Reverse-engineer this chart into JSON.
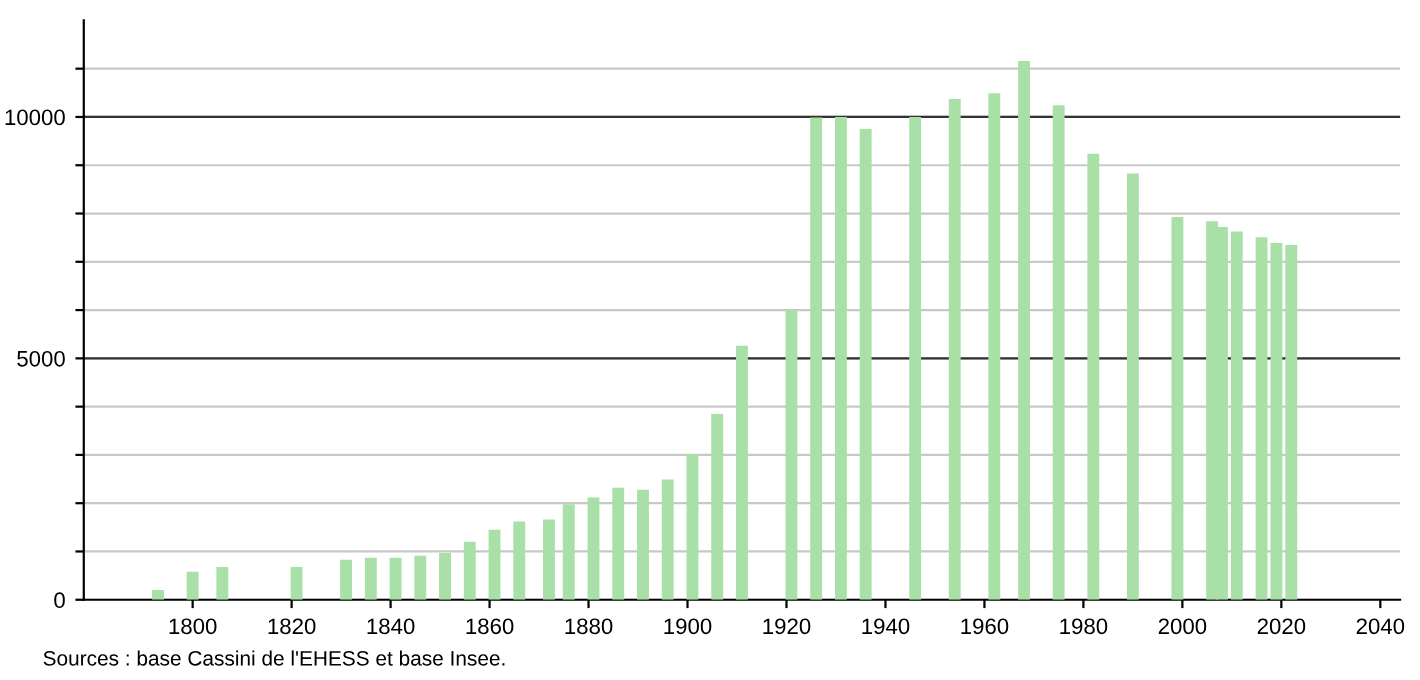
{
  "chart_data": {
    "type": "bar",
    "color": "#a8e0a8",
    "x": [
      1793,
      1800,
      1806,
      1821,
      1831,
      1836,
      1841,
      1846,
      1851,
      1856,
      1861,
      1866,
      1872,
      1876,
      1881,
      1886,
      1891,
      1896,
      1901,
      1906,
      1911,
      1921,
      1926,
      1931,
      1936,
      1946,
      1954,
      1962,
      1968,
      1975,
      1982,
      1990,
      1999,
      2006,
      2008,
      2011,
      2016,
      2019,
      2022
    ],
    "values": [
      200,
      580,
      680,
      680,
      830,
      870,
      870,
      910,
      970,
      1200,
      1450,
      1620,
      1660,
      1980,
      2120,
      2320,
      2280,
      2490,
      3020,
      3850,
      5260,
      5990,
      9990,
      10000,
      9750,
      10000,
      10370,
      10490,
      11160,
      10240,
      9240,
      8830,
      7930,
      7840,
      7720,
      7630,
      7510,
      7390,
      7350
    ],
    "xlim": [
      1778,
      2044
    ],
    "xticks": [
      1800,
      1820,
      1840,
      1860,
      1880,
      1900,
      1920,
      1940,
      1960,
      1980,
      2000,
      2020,
      2040
    ],
    "ylim": [
      0,
      12000
    ],
    "yticks": [
      0,
      {
        "value": 1000,
        "label": null
      },
      {
        "value": 2000,
        "label": null
      },
      {
        "value": 3000,
        "label": null
      },
      {
        "value": 4000,
        "label": null
      },
      5000,
      {
        "value": 6000,
        "label": null
      },
      {
        "value": 7000,
        "label": null
      },
      {
        "value": 8000,
        "label": null
      },
      {
        "value": 9000,
        "label": null
      },
      10000,
      {
        "value": 11000,
        "label": null
      }
    ],
    "grid": "y",
    "annotations": [
      "Sources : base Cassini de l'EHESS et base Insee."
    ]
  }
}
